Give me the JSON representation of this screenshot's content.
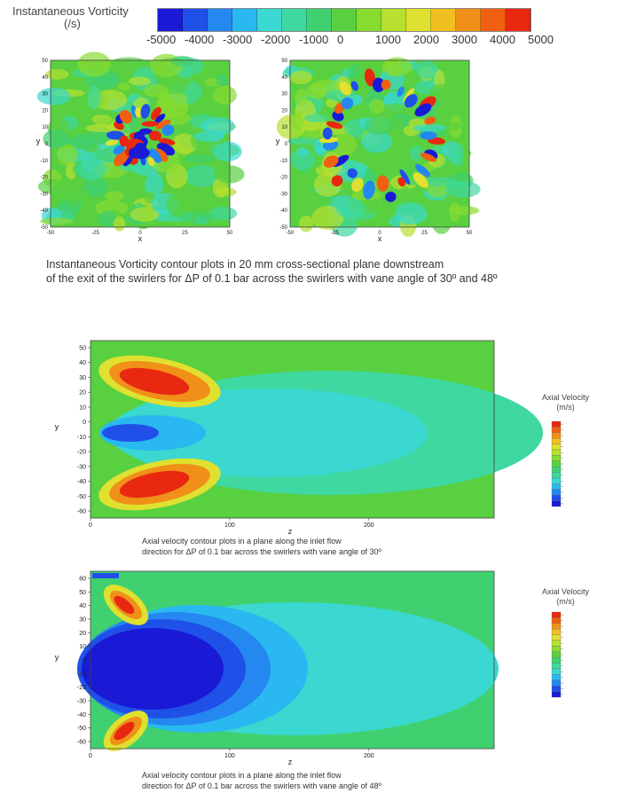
{
  "vorticity_legend": {
    "title_line1": "Instantaneous Vorticity",
    "title_line2": "(/s)",
    "ticks": [
      "-5000",
      "-4000",
      "-3000",
      "-2000",
      "-1000",
      "0",
      "1000",
      "2000",
      "3000",
      "4000",
      "5000"
    ],
    "colors": [
      "#1a1ad6",
      "#1f50e8",
      "#2488f0",
      "#2ab8f0",
      "#3ad8d0",
      "#3ed8a0",
      "#40d070",
      "#58d040",
      "#88dc30",
      "#b8e030",
      "#e0e030",
      "#f0c020",
      "#f09018",
      "#f06010",
      "#e82810"
    ]
  },
  "top_plots": {
    "caption_line1": "Instantaneous Vorticity contour plots in 20 mm cross-sectional plane downstream",
    "caption_line2": "of the exit of the swirlers for ΔP of 0.1 bar across the swirlers  with vane angle of 30º and 48º",
    "x_label": "x",
    "y_label": "y",
    "y_ticks": [
      "50",
      "40",
      "30",
      "20",
      "10",
      "0",
      "-10",
      "-20",
      "-30",
      "-40",
      "-50"
    ],
    "x_ticks": [
      "-50",
      "-25",
      "0",
      "25",
      "50"
    ]
  },
  "chart_data": [
    {
      "type": "heatmap",
      "id": "vorticity-30deg",
      "xlabel": "x",
      "ylabel": "y",
      "xlim": [
        -50,
        50
      ],
      "ylim": [
        -50,
        50
      ],
      "colorbar": "Instantaneous Vorticity (/s)",
      "zlim": [
        -5000,
        5000
      ],
      "pattern": "compact ring of alternating high positive/negative vorticity, radius ~15 mm"
    },
    {
      "type": "heatmap",
      "id": "vorticity-48deg",
      "xlabel": "x",
      "ylabel": "y",
      "xlim": [
        -50,
        50
      ],
      "ylim": [
        -50,
        50
      ],
      "colorbar": "Instantaneous Vorticity (/s)",
      "zlim": [
        -5000,
        5000
      ],
      "pattern": "large ring of alternating vorticity, radius ~30 mm"
    },
    {
      "type": "heatmap",
      "id": "axial-30deg",
      "xlabel": "z",
      "ylabel": "y",
      "x_ticks": [
        0,
        100,
        200
      ],
      "y_ticks": [
        50,
        40,
        30,
        20,
        10,
        0,
        -10,
        -20,
        -30,
        -40,
        -50,
        -60
      ],
      "legend_title": "Axial Velocity (m/s)"
    },
    {
      "type": "heatmap",
      "id": "axial-48deg",
      "xlabel": "z",
      "ylabel": "y",
      "x_ticks": [
        0,
        100,
        200
      ],
      "y_ticks": [
        60,
        50,
        40,
        30,
        20,
        10,
        0,
        -10,
        -20,
        -30,
        -40,
        -50,
        -60
      ],
      "legend_title": "Axial Velocity (m/s)"
    }
  ],
  "axial1": {
    "legend_title_line1": "Axial Velocity",
    "legend_title_line2": "(m/s)",
    "caption_line1": "Axial velocity contour plots in  a plane along the inlet flow",
    "caption_line2": "direction for ΔP of 0.1 bar across the swirlers with vane angle of 30º",
    "z_label": "z",
    "y_label": "y"
  },
  "axial2": {
    "legend_title_line1": "Axial Velocity",
    "legend_title_line2": "(m/s)",
    "caption_line1": "Axial velocity contour plots in  a plane along the inlet flow",
    "caption_line2": "direction for ΔP of 0.1 bar across the swirlers with vane angle of 48º",
    "z_label": "z",
    "y_label": "y"
  }
}
